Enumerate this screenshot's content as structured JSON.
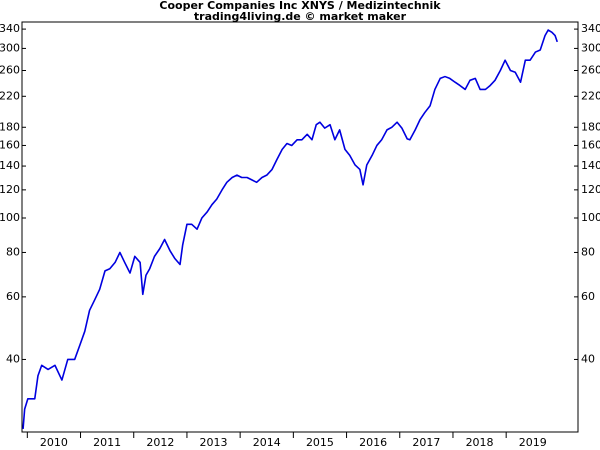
{
  "chart_data": {
    "type": "line",
    "title": "Cooper Companies Inc XNYS / Medizintechnik",
    "subtitle": "trading4living.de © market maker",
    "log_scale_y": true,
    "color": "#0000e0",
    "xlim": [
      2009.9,
      2020.35
    ],
    "xticks": [
      2010,
      2011,
      2012,
      2013,
      2014,
      2015,
      2016,
      2017,
      2018,
      2019
    ],
    "ylim": [
      25,
      356
    ],
    "yticks": [
      40,
      60,
      80,
      100,
      120,
      140,
      160,
      180,
      220,
      260,
      300,
      340
    ],
    "x": [
      2009.92,
      2009.95,
      2010.01,
      2010.14,
      2010.2,
      2010.27,
      2010.39,
      2010.52,
      2010.65,
      2010.76,
      2010.89,
      2010.99,
      2011.08,
      2011.17,
      2011.27,
      2011.36,
      2011.46,
      2011.55,
      2011.65,
      2011.74,
      2011.83,
      2011.93,
      2012.02,
      2012.12,
      2012.17,
      2012.23,
      2012.3,
      2012.39,
      2012.49,
      2012.58,
      2012.68,
      2012.77,
      2012.87,
      2012.92,
      2013.0,
      2013.09,
      2013.19,
      2013.28,
      2013.38,
      2013.47,
      2013.56,
      2013.66,
      2013.75,
      2013.85,
      2013.94,
      2014.03,
      2014.13,
      2014.22,
      2014.31,
      2014.41,
      2014.5,
      2014.6,
      2014.69,
      2014.79,
      2014.88,
      2014.97,
      2015.07,
      2015.16,
      2015.26,
      2015.35,
      2015.43,
      2015.5,
      2015.59,
      2015.69,
      2015.78,
      2015.87,
      2015.97,
      2016.06,
      2016.16,
      2016.25,
      2016.31,
      2016.38,
      2016.48,
      2016.57,
      2016.66,
      2016.76,
      2016.85,
      2016.95,
      2017.04,
      2017.14,
      2017.19,
      2017.29,
      2017.38,
      2017.47,
      2017.57,
      2017.66,
      2017.76,
      2017.85,
      2017.94,
      2018.04,
      2018.13,
      2018.23,
      2018.32,
      2018.42,
      2018.51,
      2018.61,
      2018.7,
      2018.79,
      2018.89,
      2018.98,
      2019.08,
      2019.17,
      2019.27,
      2019.36,
      2019.45,
      2019.55,
      2019.64,
      2019.73,
      2019.79,
      2019.86,
      2019.92,
      2019.96
    ],
    "values": [
      25.5,
      29,
      31,
      31,
      36,
      38.5,
      37.5,
      38.5,
      35,
      40,
      40,
      44,
      48,
      55,
      59,
      63,
      71,
      72,
      75,
      80,
      75,
      70,
      78,
      75,
      61,
      69,
      72,
      78,
      82,
      87,
      81,
      77,
      74,
      84,
      96,
      96,
      93,
      100,
      104,
      109,
      113,
      120,
      126,
      130,
      132,
      130,
      130,
      128,
      126,
      130,
      132,
      137,
      146,
      156,
      162,
      160,
      166,
      166,
      172,
      166,
      183,
      186,
      179,
      183,
      166,
      177,
      156,
      150,
      141,
      137,
      124,
      141,
      150,
      160,
      166,
      177,
      180,
      186,
      179,
      167,
      166,
      177,
      189,
      198,
      207,
      230,
      247,
      250,
      247,
      241,
      236,
      230,
      244,
      247,
      230,
      230,
      236,
      244,
      260,
      278,
      260,
      257,
      241,
      278,
      278,
      293,
      297,
      326,
      338,
      333,
      326,
      313
    ]
  }
}
